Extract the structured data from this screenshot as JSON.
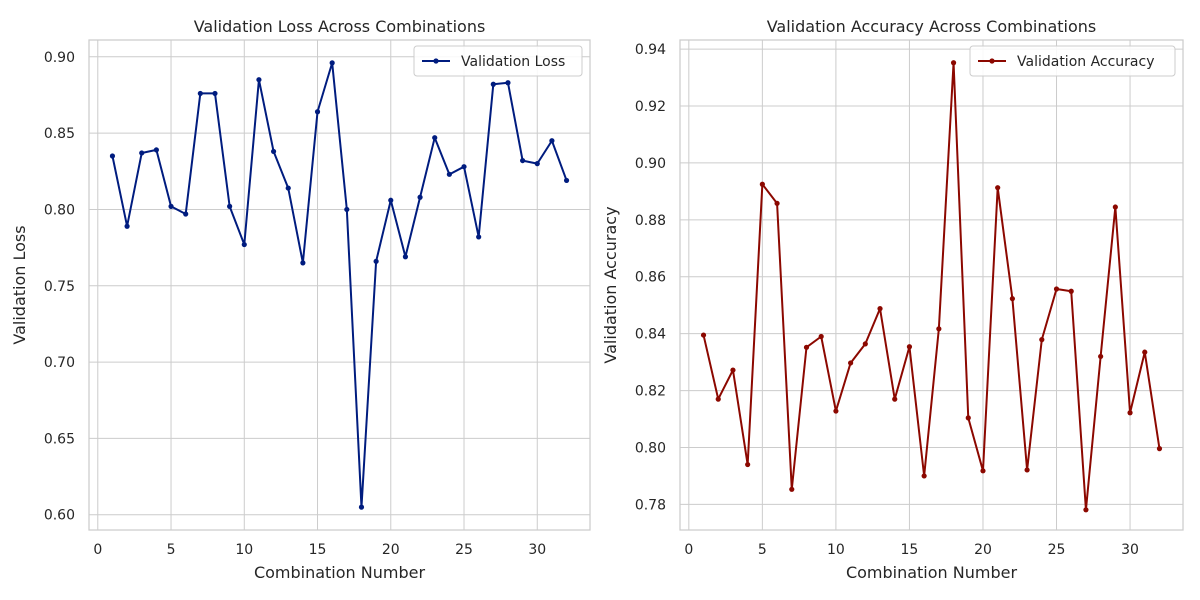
{
  "chart_data": [
    {
      "type": "line",
      "title": "Validation Loss Across Combinations",
      "xlabel": "Combination Number",
      "ylabel": "Validation Loss",
      "xlim": [
        -0.6,
        33.6
      ],
      "ylim": [
        0.59,
        0.911
      ],
      "xticks": [
        0,
        5,
        10,
        15,
        20,
        25,
        30
      ],
      "yticks": [
        0.6,
        0.65,
        0.7,
        0.75,
        0.8,
        0.85,
        0.9
      ],
      "ytick_labels": [
        "0.60",
        "0.65",
        "0.70",
        "0.75",
        "0.80",
        "0.85",
        "0.90"
      ],
      "grid": true,
      "legend_position": "top-right",
      "x": [
        1,
        2,
        3,
        4,
        5,
        6,
        7,
        8,
        9,
        10,
        11,
        12,
        13,
        14,
        15,
        16,
        17,
        18,
        19,
        20,
        21,
        22,
        23,
        24,
        25,
        26,
        27,
        28,
        29,
        30,
        31,
        32
      ],
      "series": [
        {
          "name": "Validation Loss",
          "color": "#001c7f",
          "values": [
            0.835,
            0.789,
            0.837,
            0.839,
            0.802,
            0.797,
            0.876,
            0.876,
            0.802,
            0.777,
            0.885,
            0.838,
            0.814,
            0.765,
            0.864,
            0.896,
            0.8,
            0.605,
            0.766,
            0.806,
            0.769,
            0.808,
            0.847,
            0.823,
            0.828,
            0.782,
            0.882,
            0.883,
            0.832,
            0.83,
            0.845,
            0.819
          ]
        }
      ]
    },
    {
      "type": "line",
      "title": "Validation Accuracy Across Combinations",
      "xlabel": "Combination Number",
      "ylabel": "Validation Accuracy",
      "xlim": [
        -0.6,
        33.6
      ],
      "ylim": [
        0.771,
        0.9432
      ],
      "xticks": [
        0,
        5,
        10,
        15,
        20,
        25,
        30
      ],
      "yticks": [
        0.78,
        0.8,
        0.82,
        0.84,
        0.86,
        0.88,
        0.9,
        0.92,
        0.94
      ],
      "ytick_labels": [
        "0.78",
        "0.80",
        "0.82",
        "0.84",
        "0.86",
        "0.88",
        "0.90",
        "0.92",
        "0.94"
      ],
      "grid": true,
      "legend_position": "top-right",
      "x": [
        1,
        2,
        3,
        4,
        5,
        6,
        7,
        8,
        9,
        10,
        11,
        12,
        13,
        14,
        15,
        16,
        17,
        18,
        19,
        20,
        21,
        22,
        23,
        24,
        25,
        26,
        27,
        28,
        29,
        30,
        31,
        32
      ],
      "series": [
        {
          "name": "Validation Accuracy",
          "color": "#8c0800",
          "values": [
            0.8395,
            0.817,
            0.8272,
            0.794,
            0.8925,
            0.8858,
            0.7853,
            0.8352,
            0.839,
            0.8128,
            0.8297,
            0.8364,
            0.8488,
            0.817,
            0.8354,
            0.79,
            0.8417,
            0.9352,
            0.8104,
            0.7918,
            0.8913,
            0.8523,
            0.7921,
            0.8379,
            0.8557,
            0.8549,
            0.7781,
            0.832,
            0.8845,
            0.8122,
            0.8335,
            0.7996
          ]
        }
      ]
    }
  ]
}
